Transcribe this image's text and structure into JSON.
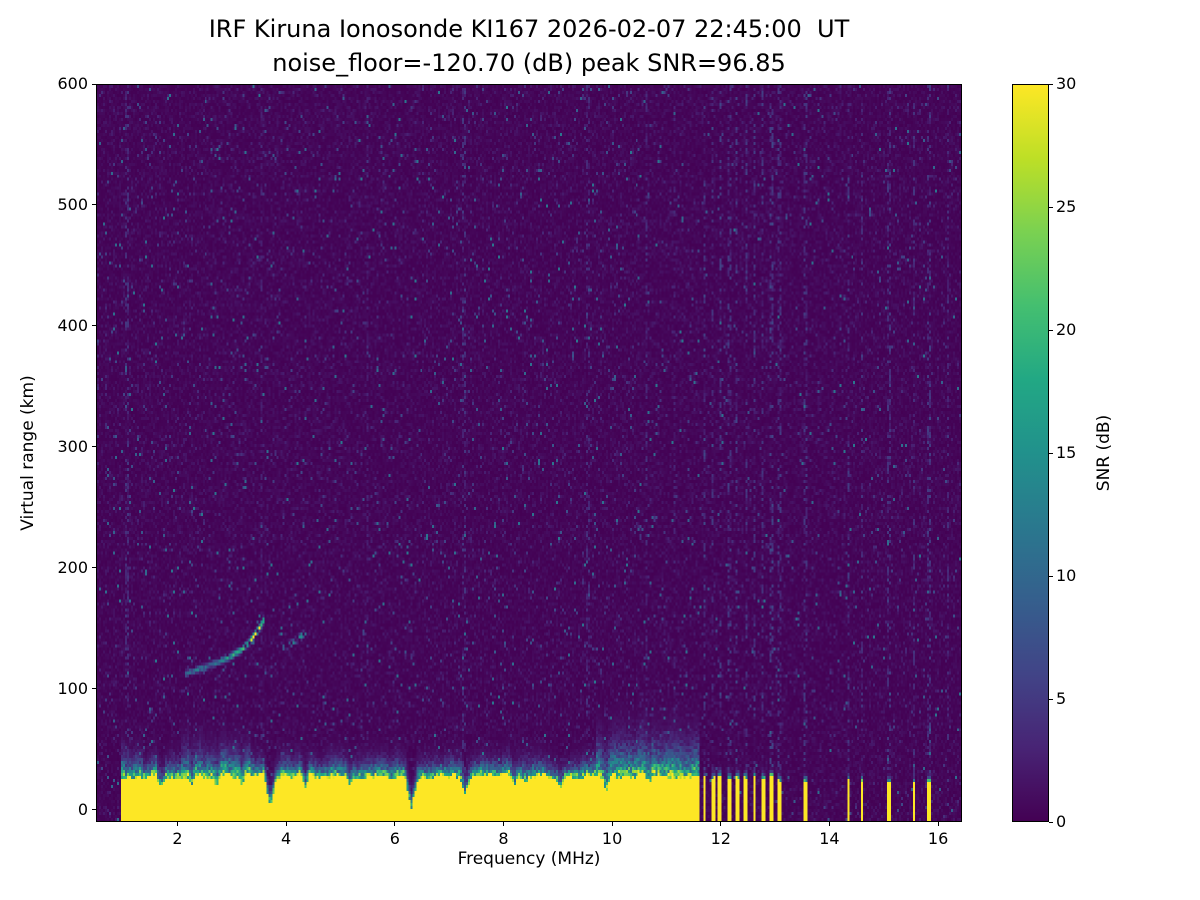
{
  "chart_data": {
    "type": "heatmap",
    "title": "IRF Kiruna Ionosonde KI167 2026-02-07 22:45:00  UT",
    "subtitle": "noise_floor=-120.70 (dB) peak SNR=96.85",
    "station": "IRF Kiruna Ionosonde KI167",
    "timestamp_ut": "2026-02-07 22:45:00 UT",
    "noise_floor_db": -120.7,
    "peak_snr_db": 96.85,
    "xlabel": "Frequency (MHz)",
    "ylabel": "Virtual range (km)",
    "xlim": [
      0.5,
      16.44
    ],
    "ylim": [
      -10,
      600
    ],
    "xticks": [
      2,
      4,
      6,
      8,
      10,
      12,
      14,
      16
    ],
    "yticks": [
      0,
      100,
      200,
      300,
      400,
      500,
      600
    ],
    "grid": false,
    "colorbar": {
      "label": "SNR (dB)",
      "min": 0,
      "max": 30,
      "ticks": [
        0,
        5,
        10,
        15,
        20,
        25,
        30
      ],
      "colormap": "viridis"
    },
    "viridis_stops": [
      [
        0.0,
        "#440154"
      ],
      [
        0.1,
        "#482475"
      ],
      [
        0.2,
        "#414487"
      ],
      [
        0.3,
        "#355f8d"
      ],
      [
        0.4,
        "#2a788e"
      ],
      [
        0.5,
        "#21918c"
      ],
      [
        0.6,
        "#22a884"
      ],
      [
        0.7,
        "#44bf70"
      ],
      [
        0.8,
        "#7ad151"
      ],
      [
        0.9,
        "#bddf26"
      ],
      [
        1.0,
        "#fde725"
      ]
    ],
    "features": {
      "background_noise": {
        "mean_snr_db": 0.55,
        "speckle_fraction_left": 0.027,
        "speckle_fraction_right": 0.017,
        "speckle_max_db": 12
      },
      "ground_clutter": {
        "f_start": 0.95,
        "f_end": 11.62,
        "yellow_top_km": 26,
        "transition_km": 13,
        "enhanced_regions": [
          {
            "f1": 0.95,
            "f2": 1.35,
            "extra_km": 6
          },
          {
            "f1": 2.05,
            "f2": 3.35,
            "extra_km": 8
          },
          {
            "f1": 9.7,
            "f2": 11.62,
            "extra_km": 14
          }
        ],
        "notches": [
          {
            "f": 1.68,
            "w": 0.1,
            "depth_km": 12
          },
          {
            "f": 2.25,
            "w": 0.07,
            "depth_km": 8
          },
          {
            "f": 2.72,
            "w": 0.08,
            "depth_km": 10
          },
          {
            "f": 3.18,
            "w": 0.06,
            "depth_km": 8
          },
          {
            "f": 3.7,
            "w": 0.12,
            "depth_km": 27
          },
          {
            "f": 4.35,
            "w": 0.07,
            "depth_km": 9
          },
          {
            "f": 5.15,
            "w": 0.07,
            "depth_km": 8
          },
          {
            "f": 6.3,
            "w": 0.12,
            "depth_km": 25
          },
          {
            "f": 7.3,
            "w": 0.1,
            "depth_km": 16
          },
          {
            "f": 8.2,
            "w": 0.07,
            "depth_km": 9
          },
          {
            "f": 9.05,
            "w": 0.07,
            "depth_km": 8
          },
          {
            "f": 9.9,
            "w": 0.08,
            "depth_km": 10
          },
          {
            "f": 10.7,
            "w": 0.07,
            "depth_km": 8
          }
        ]
      },
      "interference_bars": [
        {
          "f": 11.71,
          "w": 0.07,
          "top_km": 26
        },
        {
          "f": 11.86,
          "w": 0.07,
          "top_km": 25
        },
        {
          "f": 12.0,
          "w": 0.07,
          "top_km": 26
        },
        {
          "f": 12.17,
          "w": 0.07,
          "top_km": 24
        },
        {
          "f": 12.31,
          "w": 0.07,
          "top_km": 26
        },
        {
          "f": 12.48,
          "w": 0.07,
          "top_km": 25
        },
        {
          "f": 12.63,
          "w": 0.07,
          "top_km": 26
        },
        {
          "f": 12.78,
          "w": 0.07,
          "top_km": 24
        },
        {
          "f": 12.94,
          "w": 0.07,
          "top_km": 26
        },
        {
          "f": 13.09,
          "w": 0.06,
          "top_km": 23
        },
        {
          "f": 13.57,
          "w": 0.05,
          "top_km": 21
        },
        {
          "f": 14.36,
          "w": 0.06,
          "top_km": 23
        },
        {
          "f": 14.62,
          "w": 0.05,
          "top_km": 22
        },
        {
          "f": 15.11,
          "w": 0.06,
          "top_km": 23
        },
        {
          "f": 15.57,
          "w": 0.05,
          "top_km": 21
        },
        {
          "f": 15.85,
          "w": 0.06,
          "top_km": 22
        }
      ],
      "rfi_stripes": [
        {
          "f": 1.05,
          "w": 0.05,
          "amp_db": 4.5
        },
        {
          "f": 3.55,
          "w": 0.04,
          "amp_db": 3.5
        },
        {
          "f": 5.5,
          "w": 0.04,
          "amp_db": 3
        },
        {
          "f": 7.28,
          "w": 0.05,
          "amp_db": 5
        },
        {
          "f": 9.55,
          "w": 0.05,
          "amp_db": 4
        },
        {
          "f": 10.64,
          "w": 0.04,
          "amp_db": 4
        },
        {
          "f": 11.15,
          "w": 0.04,
          "amp_db": 3.5
        },
        {
          "f": 11.71,
          "w": 0.06,
          "amp_db": 6
        },
        {
          "f": 11.86,
          "w": 0.05,
          "amp_db": 5
        },
        {
          "f": 12.0,
          "w": 0.05,
          "amp_db": 6
        },
        {
          "f": 12.17,
          "w": 0.05,
          "amp_db": 5
        },
        {
          "f": 12.31,
          "w": 0.05,
          "amp_db": 6
        },
        {
          "f": 12.48,
          "w": 0.05,
          "amp_db": 5
        },
        {
          "f": 12.63,
          "w": 0.05,
          "amp_db": 5
        },
        {
          "f": 12.78,
          "w": 0.05,
          "amp_db": 5
        },
        {
          "f": 12.94,
          "w": 0.05,
          "amp_db": 6
        },
        {
          "f": 13.09,
          "w": 0.05,
          "amp_db": 5
        },
        {
          "f": 13.57,
          "w": 0.05,
          "amp_db": 5
        },
        {
          "f": 14.36,
          "w": 0.05,
          "amp_db": 5
        },
        {
          "f": 14.62,
          "w": 0.04,
          "amp_db": 4.5
        },
        {
          "f": 15.11,
          "w": 0.05,
          "amp_db": 5
        },
        {
          "f": 15.57,
          "w": 0.04,
          "amp_db": 4.5
        },
        {
          "f": 15.85,
          "w": 0.05,
          "amp_db": 5
        },
        {
          "f": 16.2,
          "w": 0.04,
          "amp_db": 4
        }
      ],
      "echo_trace": {
        "main": {
          "points": [
            [
              2.12,
              112
            ],
            [
              2.45,
              117
            ],
            [
              2.75,
              122
            ],
            [
              3.0,
              127
            ],
            [
              3.2,
              133
            ],
            [
              3.35,
              140
            ],
            [
              3.5,
              150
            ],
            [
              3.6,
              158
            ]
          ],
          "amp": [
            [
              2.12,
              9
            ],
            [
              2.4,
              12
            ],
            [
              2.6,
              10
            ],
            [
              2.85,
              15
            ],
            [
              3.05,
              17
            ],
            [
              3.25,
              21
            ],
            [
              3.4,
              27
            ],
            [
              3.5,
              30
            ],
            [
              3.6,
              20
            ]
          ],
          "half_width_km": 5,
          "patchy": 0.9
        },
        "secondary": {
          "points": [
            [
              3.92,
              133
            ],
            [
              4.15,
              139
            ],
            [
              4.38,
              147
            ]
          ],
          "amp": [
            [
              3.92,
              11
            ],
            [
              4.38,
              16
            ]
          ],
          "half_width_km": 4,
          "patchy": 0.55
        }
      }
    }
  }
}
